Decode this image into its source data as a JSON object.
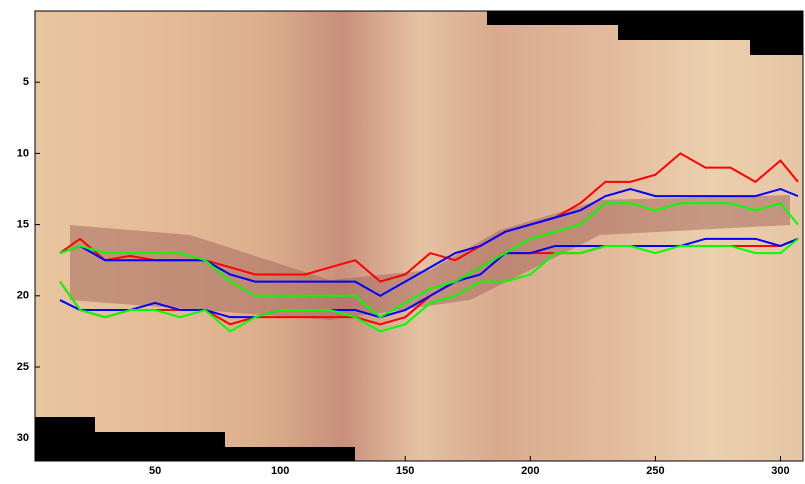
{
  "chart_data": {
    "type": "line",
    "x": [
      12,
      20,
      30,
      40,
      50,
      60,
      70,
      80,
      90,
      100,
      110,
      120,
      130,
      140,
      150,
      160,
      170,
      180,
      190,
      200,
      210,
      220,
      230,
      240,
      250,
      260,
      270,
      280,
      290,
      300,
      307
    ],
    "series": [
      {
        "color": "#ff0000",
        "values": [
          17,
          16,
          17.5,
          17.2,
          17.5,
          17.5,
          17.5,
          18,
          18.5,
          18.5,
          18.5,
          18,
          17.5,
          19,
          18.5,
          17,
          17.5,
          16.5,
          15.5,
          15,
          14.5,
          13.5,
          12,
          12,
          11.5,
          10,
          11,
          11,
          12,
          10.5,
          12
        ]
      },
      {
        "color": "#ff0000",
        "values": [
          19,
          21,
          21.5,
          21,
          21,
          21,
          21,
          22,
          21.5,
          21.5,
          21.5,
          21.5,
          21.5,
          22,
          21.5,
          20,
          19,
          18,
          17,
          17,
          17,
          17,
          16.5,
          16.5,
          16.5,
          16.5,
          16.5,
          16.5,
          16.5,
          16.5,
          16
        ]
      },
      {
        "color": "#0000ff",
        "values": [
          17,
          16.5,
          17.5,
          17.5,
          17.5,
          17.5,
          17.5,
          18.5,
          19,
          19,
          19,
          19,
          19,
          20,
          19,
          18,
          17,
          16.5,
          15.5,
          15,
          14.5,
          14,
          13,
          12.5,
          13,
          13,
          13,
          13,
          13,
          12.5,
          13
        ]
      },
      {
        "color": "#0000ff",
        "values": [
          20.3,
          21,
          21,
          21,
          20.5,
          21,
          21,
          21.5,
          21.5,
          21,
          21,
          21,
          21,
          21.5,
          21,
          20,
          19,
          18.5,
          17,
          17,
          16.5,
          16.5,
          16.5,
          16.5,
          16.5,
          16.5,
          16,
          16,
          16,
          16.5,
          16
        ]
      },
      {
        "color": "#00ff00",
        "values": [
          17,
          16.5,
          17,
          17,
          17,
          17,
          17.5,
          19,
          20,
          20,
          20,
          20,
          20,
          21.5,
          20.5,
          19.5,
          19,
          18,
          17,
          16,
          15.5,
          15,
          13.5,
          13.5,
          14,
          13.5,
          13.5,
          13.5,
          14,
          13.5,
          15
        ]
      },
      {
        "color": "#00ff00",
        "values": [
          19,
          21,
          21.5,
          21,
          21,
          21.5,
          21,
          22.5,
          21.5,
          21,
          21,
          21,
          21.5,
          22.5,
          22,
          20.5,
          20,
          19,
          19,
          18.5,
          17,
          17,
          16.5,
          16.5,
          17,
          16.5,
          16.5,
          16.5,
          17,
          17,
          16
        ]
      }
    ],
    "xlim": [
      2,
      309
    ],
    "ylim": [
      0,
      31.6
    ],
    "y_reversed": true,
    "xticks": [
      50,
      100,
      150,
      200,
      250,
      300
    ],
    "yticks": [
      5,
      10,
      15,
      20,
      25,
      30
    ]
  }
}
